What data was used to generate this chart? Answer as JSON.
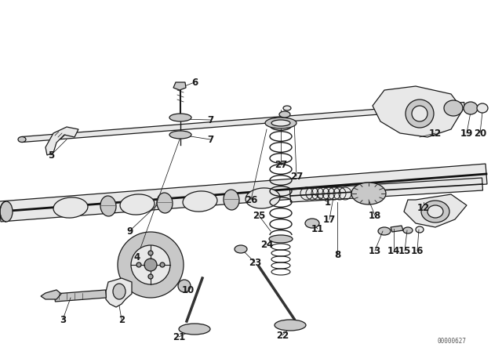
{
  "background_color": "#ffffff",
  "image_code": "00000627",
  "fig_width": 6.4,
  "fig_height": 4.48,
  "dpi": 100,
  "line_color": "#1a1a1a",
  "fill_light": "#e8e8e8",
  "fill_mid": "#c8c8c8",
  "fill_dark": "#a0a0a0",
  "label_fontsize": 7.5
}
